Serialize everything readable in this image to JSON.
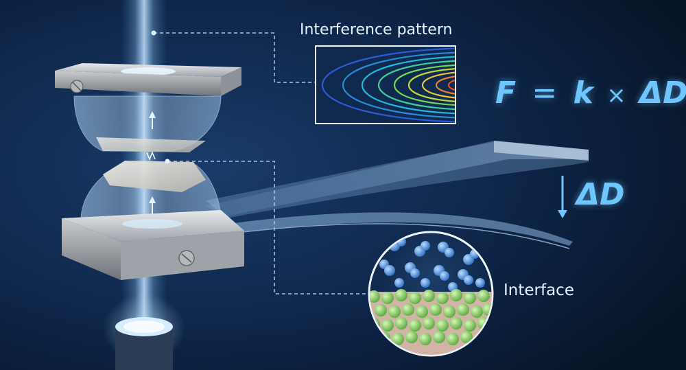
{
  "labels": {
    "interference_pattern": "Interference pattern",
    "interface": "Interface"
  },
  "formula": {
    "lhs": "F",
    "equals": "=",
    "k": "k",
    "times": "×",
    "delta_d": "ΔD"
  },
  "deflection_label": "ΔD",
  "colors": {
    "background": "#0a1c36",
    "accent_text": "#6ec6ff",
    "label_text": "#e6f2ff",
    "light_beam": "#8fd0ff",
    "metal": "#b8bcc2",
    "liquid_molecules": "#5aa0e8",
    "surface_atoms": "#8ed873",
    "dashed_leader": "#a9c6ea"
  },
  "icons": {
    "top_screw": "screw-icon",
    "bottom_screw": "screw-icon",
    "arrow": "arrow-down-icon"
  }
}
